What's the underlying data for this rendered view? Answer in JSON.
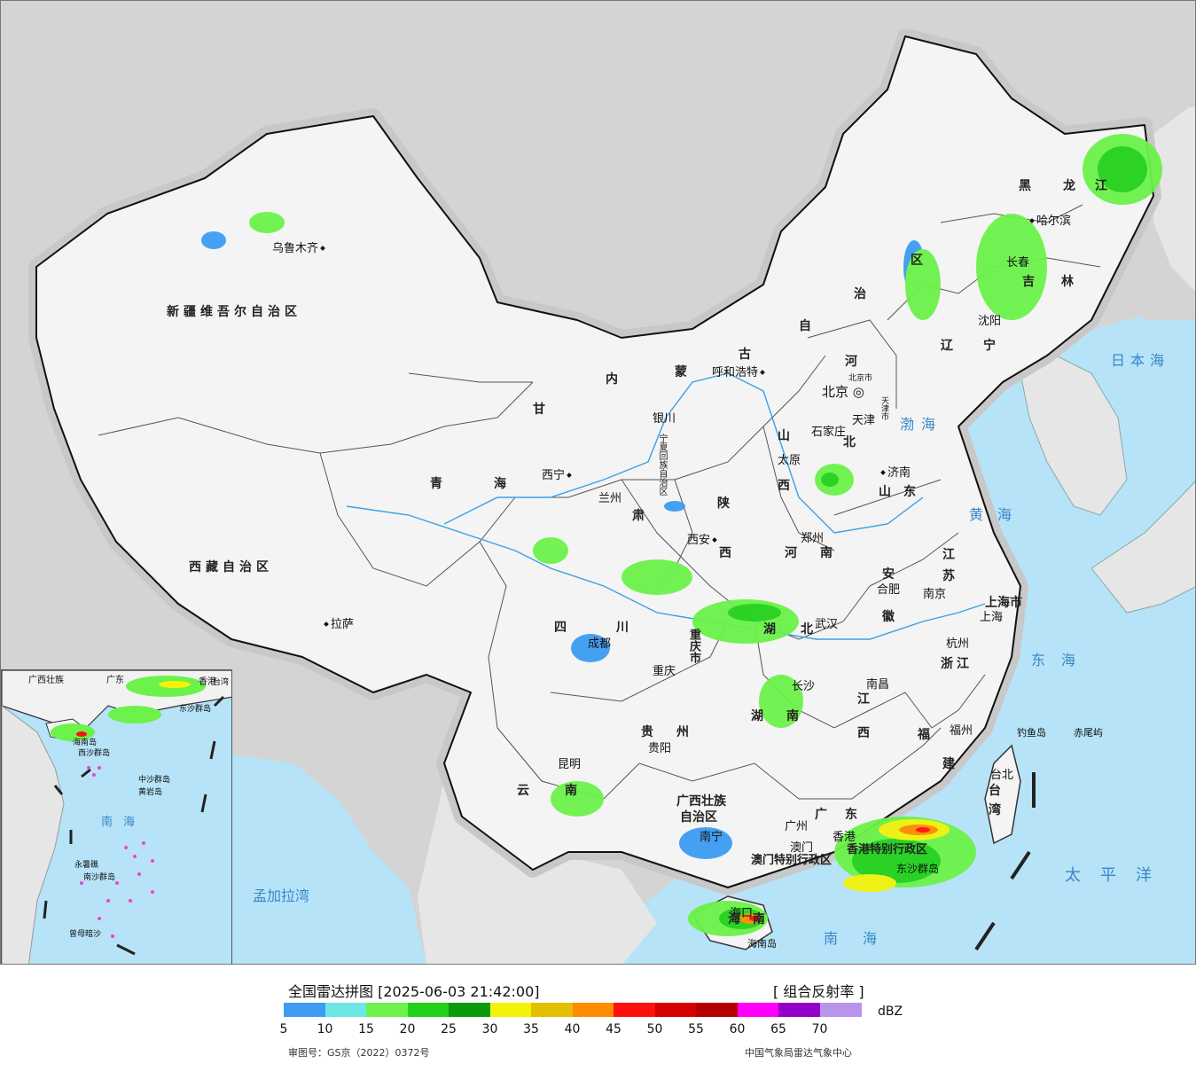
{
  "cities": [
    {
      "name": "乌鲁木齐",
      "dot": "right"
    },
    {
      "name": "拉萨",
      "dot": "left"
    },
    {
      "name": "西宁",
      "dot": "right"
    },
    {
      "name": "兰州",
      "dot": "left"
    },
    {
      "name": "银川",
      "dot": "below"
    },
    {
      "name": "呼和浩特",
      "dot": "right"
    },
    {
      "name": "北京",
      "dot": "right"
    },
    {
      "name": "天津",
      "dot": "right"
    },
    {
      "name": "石家庄",
      "dot": "below"
    },
    {
      "name": "太原",
      "dot": "right"
    },
    {
      "name": "济南",
      "dot": "left"
    },
    {
      "name": "郑州",
      "dot": "below"
    },
    {
      "name": "西安",
      "dot": "right"
    },
    {
      "name": "成都",
      "dot": "left"
    },
    {
      "name": "重庆",
      "dot": "above"
    },
    {
      "name": "贵阳",
      "dot": "above"
    },
    {
      "name": "昆明",
      "dot": "below"
    },
    {
      "name": "南宁",
      "dot": "left"
    },
    {
      "name": "广州",
      "dot": "below"
    },
    {
      "name": "澳门",
      "dot": "right"
    },
    {
      "name": "香港",
      "dot": "below"
    },
    {
      "name": "海口",
      "dot": "left"
    },
    {
      "name": "长沙",
      "dot": "above"
    },
    {
      "name": "武汉",
      "dot": "left"
    },
    {
      "name": "南昌",
      "dot": "left"
    },
    {
      "name": "合肥",
      "dot": "above"
    },
    {
      "name": "南京",
      "dot": "left"
    },
    {
      "name": "上海",
      "dot": "left"
    },
    {
      "name": "杭州",
      "dot": "above"
    },
    {
      "name": "福州",
      "dot": "right"
    },
    {
      "name": "台北",
      "dot": "above"
    },
    {
      "name": "沈阳",
      "dot": "below"
    },
    {
      "name": "长春",
      "dot": "below"
    },
    {
      "name": "哈尔滨",
      "dot": "left"
    }
  ],
  "provinces": [
    "新疆维吾尔自治区",
    "西藏自治区",
    "青海",
    "甘",
    "肃",
    "内",
    "蒙",
    "古",
    "自",
    "治",
    "区",
    "宁夏回族自治区",
    "陕",
    "西",
    "山",
    "西",
    "河",
    "北",
    "山东",
    "河",
    "南",
    "四",
    "川",
    "重庆市",
    "湖",
    "北",
    "湖",
    "南",
    "贵",
    "州",
    "云",
    "南",
    "广西壮族",
    "自治区",
    "广",
    "东",
    "江",
    "西",
    "福",
    "建",
    "浙江",
    "安",
    "徽",
    "江",
    "苏",
    "上海市",
    "黑",
    "龙",
    "江",
    "吉",
    "林",
    "辽",
    "宁",
    "海南",
    "台",
    "湾",
    "北京市",
    "天津市",
    "香港特别行政区",
    "澳门特别行政区"
  ],
  "places": [
    "钓鱼岛",
    "赤尾屿",
    "东沙群岛",
    "海南岛"
  ],
  "seas": [
    "渤海",
    "黄海",
    "东海",
    "南海",
    "日本海",
    "太平洋",
    "孟加拉湾"
  ],
  "inset_labels": [
    "广西壮族",
    "广东",
    "香港",
    "海南岛",
    "西沙群岛",
    "中沙群岛",
    "黄岩岛",
    "南海",
    "永暑礁",
    "南沙群岛",
    "曾母暗沙",
    "东沙群岛",
    "台湾"
  ],
  "legend": {
    "title": "全国雷达拼图 [2025-06-03 21:42:00]",
    "product": "[ 组合反射率 ]",
    "unit": "dBZ",
    "colors": [
      "#3d9cf2",
      "#6de6e6",
      "#6cf24a",
      "#22d21a",
      "#0a9a0a",
      "#f2f20a",
      "#e2c000",
      "#ff8c00",
      "#ff1010",
      "#d60000",
      "#b40000",
      "#ff00ff",
      "#9400c8",
      "#b894ec"
    ],
    "ticks": [
      "5",
      "10",
      "15",
      "20",
      "25",
      "30",
      "35",
      "40",
      "45",
      "50",
      "55",
      "60",
      "65",
      "70"
    ],
    "review_number": "审图号：GS京（2022）0372号",
    "source": "中国气象局雷达气象中心"
  }
}
